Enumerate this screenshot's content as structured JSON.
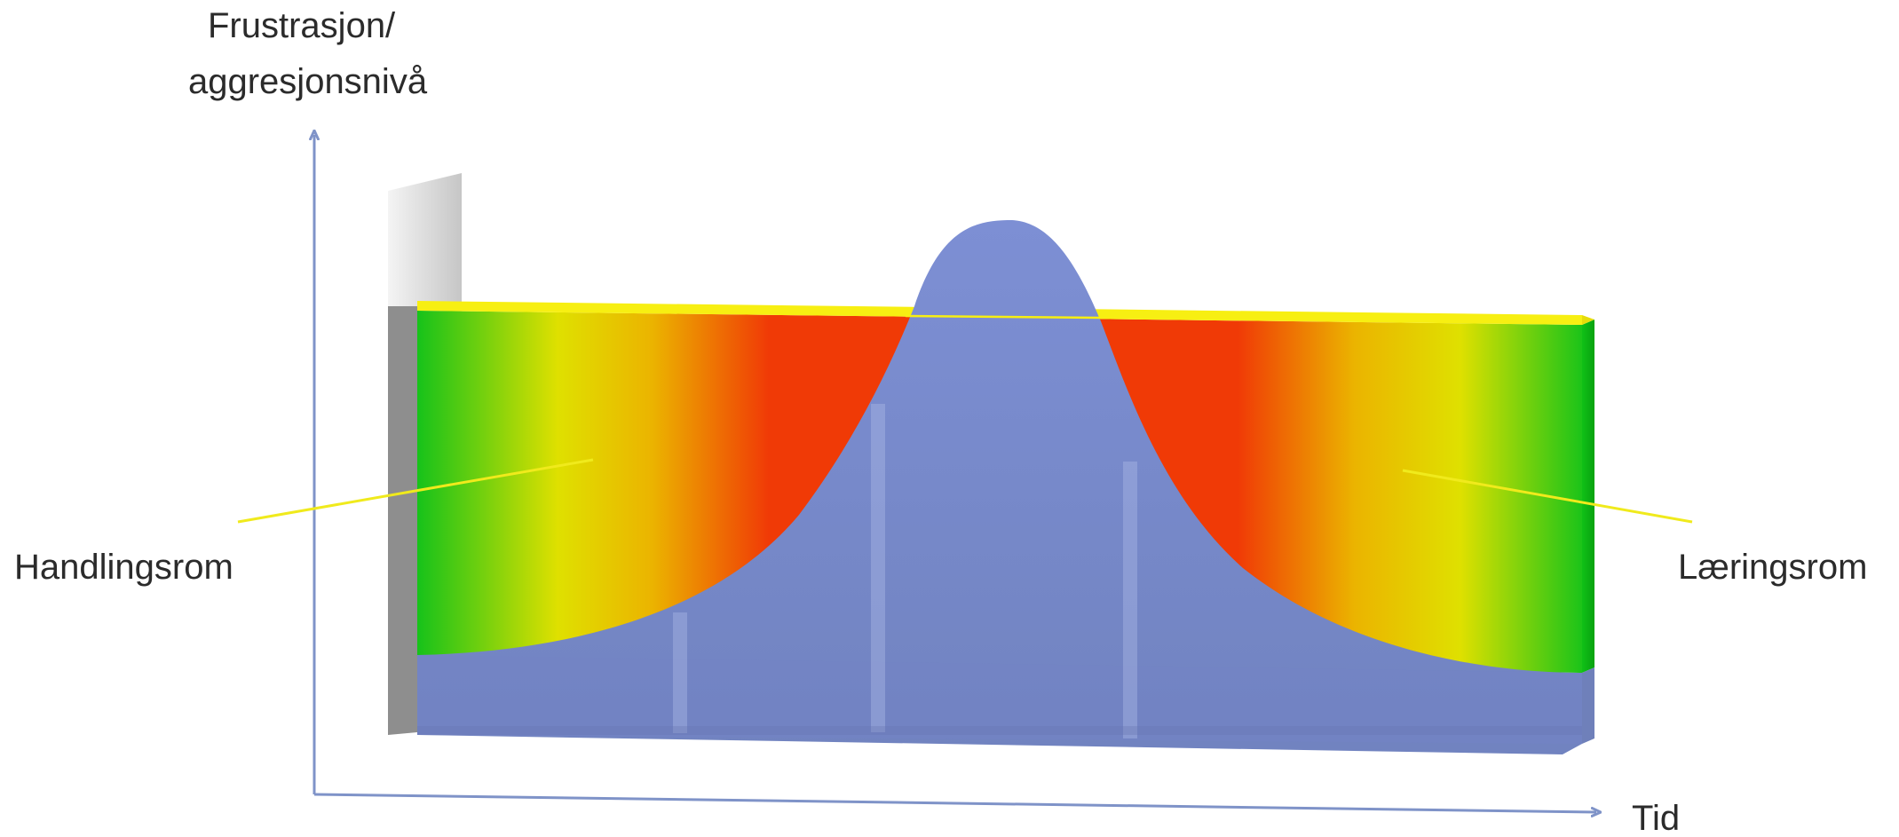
{
  "diagram": {
    "y_axis_label_line1": "Frustrasjon/",
    "y_axis_label_line2": "aggresjonsnivå",
    "x_axis_label": "Tid",
    "left_label": "Handlingsrom",
    "right_label": "Læringsrom"
  },
  "colors": {
    "axis": "#7f93c8",
    "curve": "#7b8dd0",
    "ceiling": "#f7ef12",
    "green": "#17c21a",
    "yellow": "#e2e000",
    "red": "#f03a06"
  }
}
